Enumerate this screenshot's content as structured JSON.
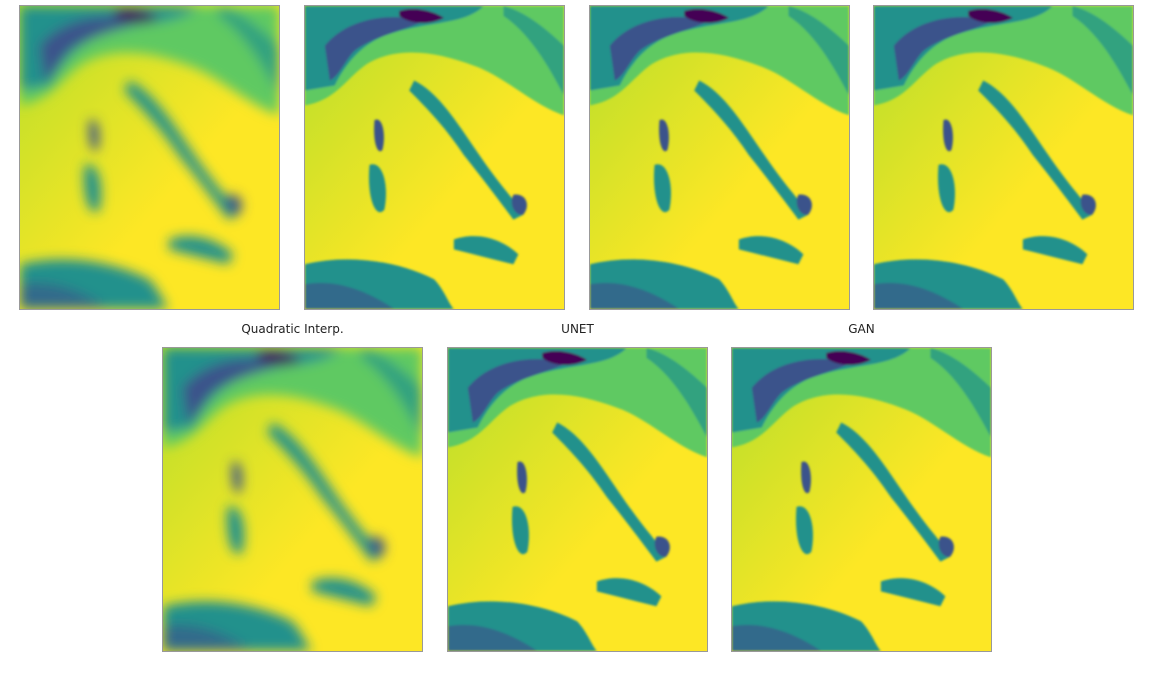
{
  "colormap": [
    "#440154",
    "#3b528b",
    "#21918c",
    "#5ec962",
    "#fde725"
  ],
  "top_row": [
    {
      "title": ""
    },
    {
      "title": ""
    },
    {
      "title": ""
    },
    {
      "title": ""
    }
  ],
  "bottom_row": [
    {
      "title": "Quadratic Interp."
    },
    {
      "title": "UNET"
    },
    {
      "title": "GAN"
    }
  ]
}
